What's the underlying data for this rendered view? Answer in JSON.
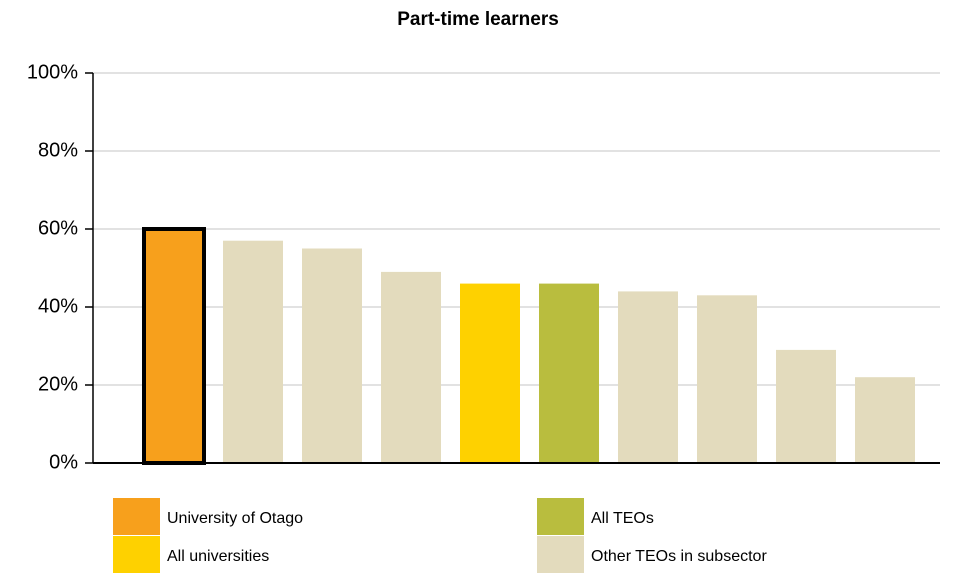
{
  "chart_data": {
    "type": "bar",
    "title": "Part-time learners",
    "categories": [
      null,
      null,
      null,
      null,
      null,
      null,
      null,
      null,
      null,
      null
    ],
    "values": [
      60,
      57,
      55,
      49,
      46,
      46,
      44,
      43,
      29,
      22
    ],
    "colors": [
      "#f7a01c",
      "#e3dbbd",
      "#e3dbbd",
      "#e3dbbd",
      "#fed100",
      "#b9bd3e",
      "#e3dbbd",
      "#e3dbbd",
      "#e3dbbd",
      "#e3dbbd"
    ],
    "ylim": [
      0,
      100
    ],
    "yticks": [
      {
        "value": 0,
        "label": "0%"
      },
      {
        "value": 20,
        "label": "20%"
      },
      {
        "value": 40,
        "label": "40%"
      },
      {
        "value": 60,
        "label": "60%"
      },
      {
        "value": 80,
        "label": "80%"
      },
      {
        "value": 100,
        "label": "100%"
      }
    ],
    "grid": true,
    "legend": [
      {
        "name": "University of Otago",
        "color": "#f7a01c"
      },
      {
        "name": "All universities",
        "color": "#fed100"
      },
      {
        "name": "All TEOs",
        "color": "#b9bd3e"
      },
      {
        "name": "Other TEOs in subsector",
        "color": "#e3dbbd"
      }
    ]
  }
}
